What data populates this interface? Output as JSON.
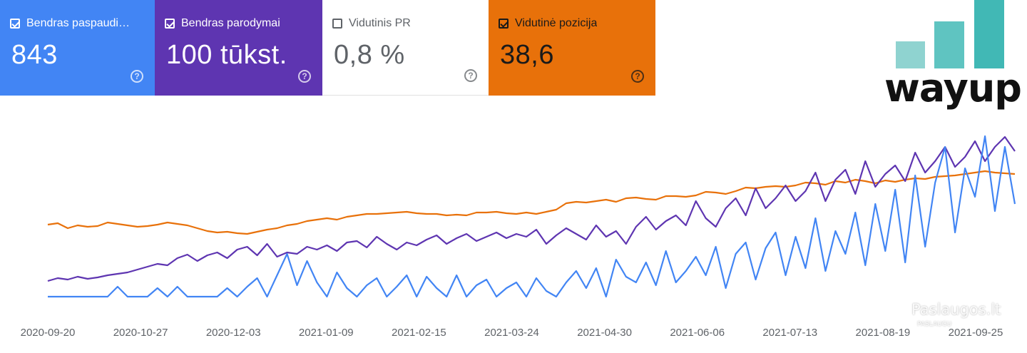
{
  "metrics": [
    {
      "label": "Bendras paspaudimai",
      "value": "843",
      "checked": true,
      "color": "#4285f4"
    },
    {
      "label": "Bendras parodymai",
      "value": "100 tūkst.",
      "checked": true,
      "color": "#5e35b1"
    },
    {
      "label": "Vidutinis PR",
      "value": "0,8 %",
      "checked": false,
      "color": "#ffffff"
    },
    {
      "label": "Vidutinė pozicija",
      "value": "38,6",
      "checked": true,
      "color": "#e8710a"
    }
  ],
  "logo": {
    "text": "wayup"
  },
  "watermark": {
    "text": "Paslaugos.lt",
    "subtext": "PASLAUGU"
  },
  "chart_data": {
    "type": "line",
    "x_ticks": [
      "2020-09-20",
      "2020-10-27",
      "2020-12-03",
      "2021-01-09",
      "2021-02-15",
      "2021-03-24",
      "2021-04-30",
      "2021-06-06",
      "2021-07-13",
      "2021-08-19",
      "2021-09-25"
    ],
    "x_range": [
      "2020-09-20",
      "2021-09-25"
    ],
    "grid": false,
    "series": [
      {
        "name": "Vidutinė pozicija",
        "color": "#e8710a",
        "values": [
          45,
          47,
          40,
          44,
          42,
          43,
          48,
          46,
          44,
          42,
          43,
          45,
          48,
          46,
          44,
          40,
          36,
          34,
          35,
          33,
          32,
          35,
          38,
          40,
          44,
          46,
          50,
          52,
          54,
          52,
          56,
          58,
          60,
          60,
          61,
          62,
          63,
          61,
          60,
          60,
          58,
          59,
          58,
          62,
          62,
          63,
          61,
          60,
          62,
          60,
          63,
          66,
          75,
          77,
          76,
          78,
          80,
          77,
          82,
          83,
          81,
          80,
          85,
          85,
          84,
          86,
          91,
          90,
          88,
          92,
          97,
          96,
          98,
          99,
          98,
          100,
          104,
          103,
          101,
          106,
          104,
          108,
          106,
          103,
          107,
          105,
          108,
          110,
          109,
          112,
          113,
          114,
          116,
          118,
          120,
          118,
          117,
          116
        ]
      },
      {
        "name": "Bendras parodymai",
        "color": "#5e35b1",
        "values": [
          8,
          12,
          10,
          14,
          11,
          13,
          16,
          18,
          20,
          24,
          28,
          32,
          30,
          40,
          45,
          36,
          44,
          48,
          40,
          52,
          56,
          44,
          60,
          42,
          48,
          46,
          56,
          52,
          58,
          50,
          62,
          64,
          55,
          70,
          60,
          52,
          62,
          58,
          66,
          72,
          60,
          68,
          74,
          64,
          70,
          76,
          68,
          74,
          70,
          80,
          60,
          72,
          82,
          74,
          66,
          86,
          70,
          78,
          60,
          84,
          98,
          80,
          92,
          100,
          86,
          120,
          96,
          84,
          110,
          124,
          100,
          138,
          110,
          124,
          142,
          120,
          134,
          160,
          120,
          150,
          164,
          130,
          176,
          140,
          158,
          170,
          148,
          188,
          160,
          176,
          196,
          168,
          182,
          204,
          176,
          196,
          210,
          190
        ]
      },
      {
        "name": "Bendras paspaudimai",
        "color": "#4285f4",
        "values": [
          0,
          0,
          0,
          0,
          0,
          0,
          0,
          14,
          0,
          0,
          0,
          12,
          0,
          14,
          0,
          0,
          0,
          0,
          12,
          0,
          14,
          26,
          0,
          30,
          60,
          16,
          50,
          20,
          0,
          34,
          12,
          0,
          16,
          26,
          0,
          14,
          30,
          0,
          28,
          12,
          0,
          30,
          0,
          16,
          24,
          0,
          12,
          20,
          0,
          26,
          8,
          0,
          20,
          36,
          12,
          40,
          0,
          52,
          28,
          20,
          48,
          16,
          64,
          20,
          36,
          56,
          30,
          70,
          12,
          60,
          76,
          24,
          68,
          90,
          30,
          84,
          40,
          110,
          36,
          92,
          60,
          118,
          44,
          130,
          64,
          150,
          48,
          170,
          70,
          160,
          210,
          90,
          180,
          140,
          225,
          120,
          210,
          130
        ]
      }
    ]
  }
}
